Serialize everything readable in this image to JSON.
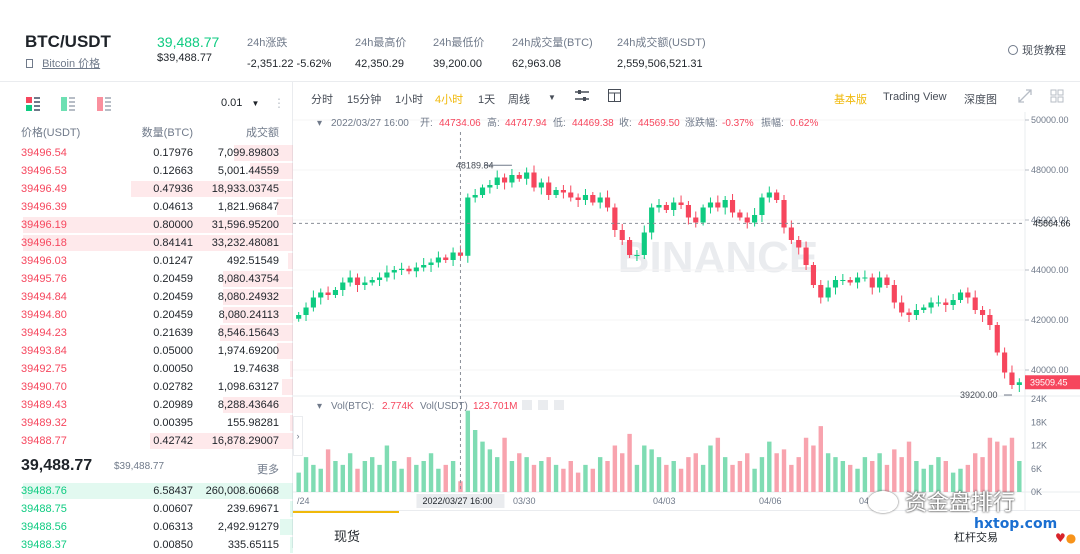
{
  "header": {
    "pair": "BTC/USDT",
    "sub_label": "Bitcoin 价格",
    "price": "39,488.77",
    "price_sub": "$39,488.77",
    "stats": [
      {
        "label": "24h涨跌",
        "value": "-2,351.22 -5.62%",
        "color": "red"
      },
      {
        "label": "24h最高价",
        "value": "42,350.29",
        "color": "default"
      },
      {
        "label": "24h最低价",
        "value": "39,200.00",
        "color": "default"
      },
      {
        "label": "24h成交量(BTC)",
        "value": "62,963.08",
        "color": "default"
      },
      {
        "label": "24h成交额(USDT)",
        "value": "2,559,506,521.31",
        "color": "default"
      }
    ],
    "tutorial": "现货教程"
  },
  "orderbook": {
    "precision": "0.01",
    "columns": [
      "价格(USDT)",
      "数量(BTC)",
      "成交额"
    ],
    "asks": [
      {
        "price": "39496.54",
        "qty": "0.17976",
        "total": "7,099.89803",
        "depth": 0.22
      },
      {
        "price": "39496.53",
        "qty": "0.12663",
        "total": "5,001.44559",
        "depth": 0.16
      },
      {
        "price": "39496.49",
        "qty": "0.47936",
        "total": "18,933.03745",
        "depth": 0.6
      },
      {
        "price": "39496.39",
        "qty": "0.04613",
        "total": "1,821.96847",
        "depth": 0.06
      },
      {
        "price": "39496.19",
        "qty": "0.80000",
        "total": "31,596.95200",
        "depth": 1.0
      },
      {
        "price": "39496.18",
        "qty": "0.84141",
        "total": "33,232.48081",
        "depth": 1.0
      },
      {
        "price": "39496.03",
        "qty": "0.01247",
        "total": "492.51549",
        "depth": 0.02
      },
      {
        "price": "39495.76",
        "qty": "0.20459",
        "total": "8,080.43754",
        "depth": 0.26
      },
      {
        "price": "39494.84",
        "qty": "0.20459",
        "total": "8,080.24932",
        "depth": 0.26
      },
      {
        "price": "39494.80",
        "qty": "0.20459",
        "total": "8,080.24113",
        "depth": 0.26
      },
      {
        "price": "39494.23",
        "qty": "0.21639",
        "total": "8,546.15643",
        "depth": 0.27
      },
      {
        "price": "39493.84",
        "qty": "0.05000",
        "total": "1,974.69200",
        "depth": 0.06
      },
      {
        "price": "39492.75",
        "qty": "0.00050",
        "total": "19.74638",
        "depth": 0.01
      },
      {
        "price": "39490.70",
        "qty": "0.02782",
        "total": "1,098.63127",
        "depth": 0.04
      },
      {
        "price": "39489.43",
        "qty": "0.20989",
        "total": "8,288.43646",
        "depth": 0.26
      },
      {
        "price": "39489.32",
        "qty": "0.00395",
        "total": "155.98281",
        "depth": 0.01
      },
      {
        "price": "39488.77",
        "qty": "0.42742",
        "total": "16,878.29007",
        "depth": 0.53
      }
    ],
    "last_price": "39,488.77",
    "last_price_usd": "$39,488.77",
    "more": "更多",
    "bids": [
      {
        "price": "39488.76",
        "qty": "6.58437",
        "total": "260,008.60668",
        "depth": 1.0
      },
      {
        "price": "39488.75",
        "qty": "0.00607",
        "total": "239.69671",
        "depth": 0.01
      },
      {
        "price": "39488.56",
        "qty": "0.06313",
        "total": "2,492.91279",
        "depth": 0.05
      },
      {
        "price": "39488.37",
        "qty": "0.00850",
        "total": "335.65115",
        "depth": 0.01
      }
    ]
  },
  "chart_toolbar": {
    "intervals": [
      "分时",
      "15分钟",
      "1小时",
      "4小时",
      "1天",
      "周线"
    ],
    "active_interval": "4小时",
    "views": [
      "基本版",
      "Trading View",
      "深度图"
    ],
    "active_view": "基本版"
  },
  "ohlc_info": {
    "date": "2022/03/27 16:00",
    "open_label": "开:",
    "open": "44734.06",
    "high_label": "高:",
    "high": "44747.94",
    "low_label": "低:",
    "low": "44469.38",
    "close_label": "收:",
    "close": "44569.50",
    "change_label": "涨跌幅:",
    "change": "-0.37%",
    "amp_label": "振幅:",
    "amp": "0.62%"
  },
  "volume_info": {
    "vol_btc_label": "Vol(BTC):",
    "vol_btc": "2.774K",
    "vol_usdt_label": "Vol(USDT)",
    "vol_usdt": "123.701M"
  },
  "chart_data": {
    "type": "candlestick",
    "price_axis": {
      "min": 39000,
      "max": 50000,
      "ticks": [
        "50000.00",
        "48000.00",
        "46000.00",
        "44000.00",
        "42000.00",
        "40000.00"
      ]
    },
    "volume_axis": {
      "ticks": [
        "24K",
        "18K",
        "12K",
        "6K",
        "0K"
      ]
    },
    "x_ticks": [
      "/24",
      "03/30",
      "04/03",
      "04/06",
      "04"
    ],
    "crosshair_date": "2022/03/27 16:00",
    "crosshair_price": "45864.66",
    "current_price": "39509.45",
    "max_marker": "48189.84",
    "min_marker": "39200.00",
    "watermark": "BINANCE",
    "close_path": [
      42200,
      42500,
      42900,
      43100,
      43000,
      43200,
      43500,
      43700,
      43400,
      43500,
      43600,
      43700,
      43900,
      44000,
      44050,
      43950,
      44100,
      44200,
      44300,
      44500,
      44400,
      44700,
      44569,
      46900,
      47000,
      47300,
      47400,
      47700,
      47500,
      47800,
      47650,
      47900,
      47300,
      47500,
      47000,
      47200,
      47100,
      46900,
      46800,
      47000,
      46700,
      46900,
      46500,
      45600,
      45200,
      44600,
      44600,
      45500,
      46500,
      46600,
      46400,
      46700,
      46600,
      46100,
      45900,
      46500,
      46700,
      46500,
      46800,
      46300,
      46100,
      45900,
      46200,
      46900,
      47100,
      46800,
      45700,
      45200,
      44900,
      44200,
      43400,
      42900,
      43300,
      43600,
      43600,
      43500,
      43700,
      43700,
      43300,
      43700,
      43400,
      42700,
      42300,
      42200,
      42400,
      42500,
      42700,
      42700,
      42600,
      42800,
      43100,
      42900,
      42400,
      42200,
      41800,
      40700,
      39900,
      39400,
      39509
    ],
    "volumes": [
      5000,
      9000,
      7000,
      6000,
      11000,
      8000,
      7000,
      10000,
      6000,
      8000,
      9000,
      7000,
      12000,
      8000,
      6000,
      9000,
      7000,
      8000,
      10000,
      6000,
      7000,
      8000,
      2774,
      21000,
      16000,
      13000,
      11000,
      9000,
      14000,
      8000,
      10000,
      9000,
      7000,
      8000,
      9000,
      7000,
      6000,
      8000,
      5000,
      7000,
      6000,
      9000,
      8000,
      12000,
      10000,
      15000,
      7000,
      12000,
      11000,
      9000,
      7000,
      8000,
      6000,
      9000,
      10000,
      7000,
      12000,
      14000,
      9000,
      7000,
      8000,
      10000,
      6000,
      9000,
      13000,
      10000,
      11000,
      7000,
      9000,
      14000,
      12000,
      17000,
      10000,
      9000,
      8000,
      7000,
      6000,
      9000,
      8000,
      10000,
      7000,
      11000,
      9000,
      13000,
      8000,
      6000,
      7000,
      9000,
      8000,
      5000,
      6000,
      7000,
      10000,
      9000,
      14000,
      13000,
      12000,
      14000,
      8000
    ]
  },
  "bottom": {
    "spot_tab": "现货",
    "lever_tab": "杠杆交易",
    "watermark_cn": "资金盘排行",
    "watermark_url": "hxtop.com"
  }
}
